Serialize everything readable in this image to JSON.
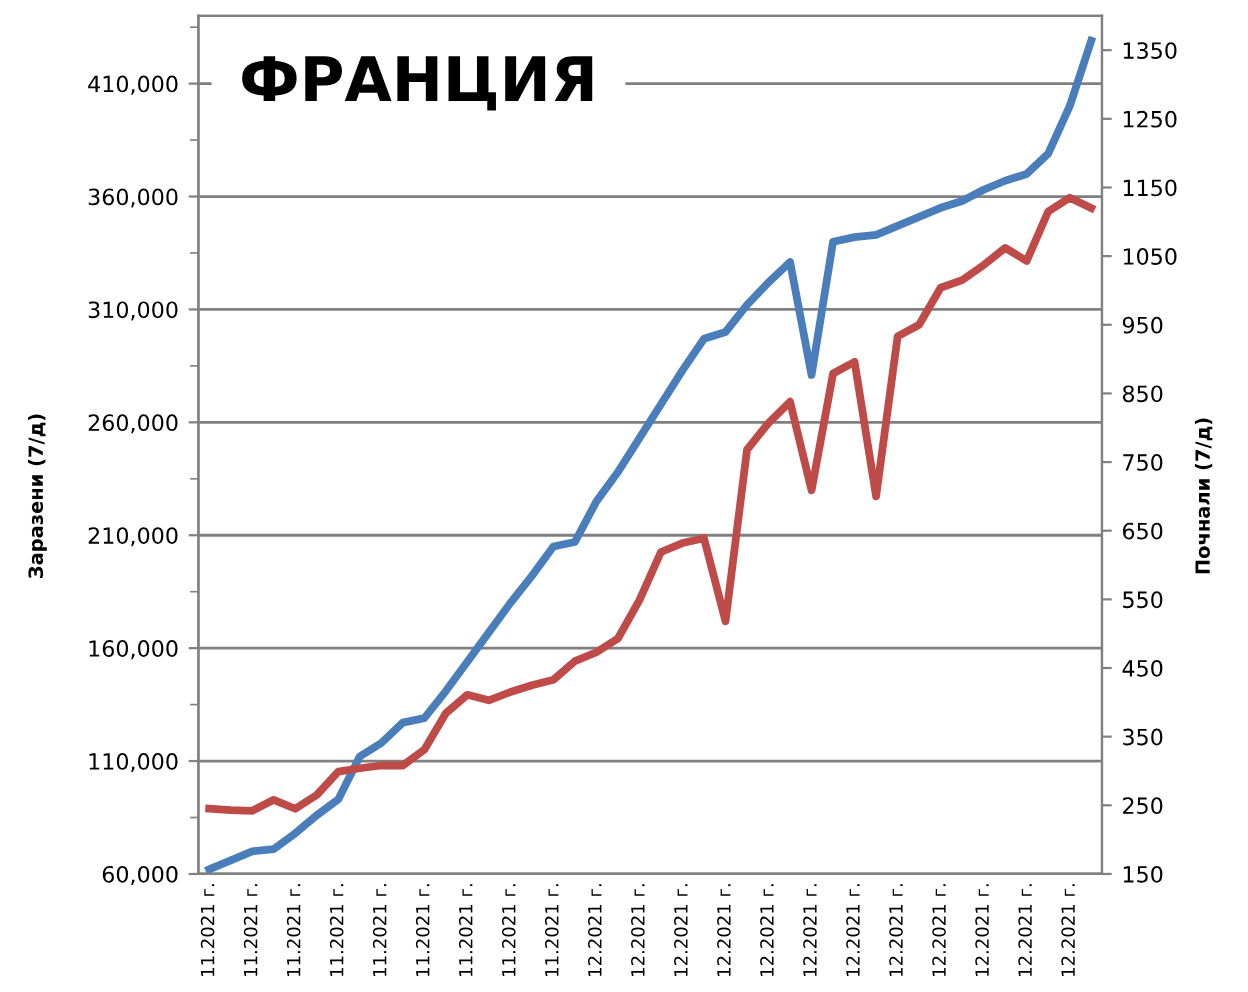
{
  "chart_data": {
    "type": "line",
    "title": "ФРАНЦИЯ",
    "ylabel": "Заразени (7/д)",
    "y2label": "Почнали (7/д)",
    "categories": [
      "11.2021 г.",
      null,
      "11.2021 г.",
      null,
      "11.2021 г.",
      null,
      "11.2021 г.",
      null,
      "11.2021 г.",
      null,
      "11.2021 г.",
      null,
      "11.2021 г.",
      null,
      "11.2021 г.",
      null,
      "11.2021 г.",
      null,
      "12.2021 г.",
      null,
      "12.2021 г.",
      null,
      "12.2021 г.",
      null,
      "12.2021 г.",
      null,
      "12.2021 г.",
      null,
      "12.2021 г.",
      null,
      "12.2021 г.",
      null,
      "12.2021 г.",
      null,
      "12.2021 г.",
      null,
      "12.2021 г.",
      null,
      "12.2021 г.",
      null,
      "12.2021 г.",
      null
    ],
    "series": [
      {
        "color": "#4a7ebb",
        "values": [
          62000,
          66000,
          70000,
          71000,
          78000,
          86000,
          93000,
          112000,
          118000,
          127000,
          129000,
          141000,
          154000,
          167000,
          180000,
          192000,
          205000,
          207000,
          225000,
          238000,
          253000,
          268000,
          283000,
          297000,
          300000,
          312000,
          322000,
          331000,
          281000,
          340000,
          342000,
          343000,
          347000,
          351000,
          355000,
          358000,
          363000,
          367000,
          370000,
          379000,
          400000,
          429000
        ]
      },
      {
        "color": "#be4b48",
        "axis": "y2",
        "values": [
          245,
          243,
          242,
          258,
          245,
          265,
          299,
          304,
          308,
          308,
          331,
          384,
          411,
          403,
          415,
          425,
          433,
          460,
          473,
          493,
          549,
          619,
          632,
          639,
          518,
          768,
          807,
          838,
          709,
          879,
          896,
          700,
          933,
          950,
          1004,
          1015,
          1037,
          1062,
          1043,
          1115,
          1135,
          1120
        ]
      }
    ],
    "ylim": [
      60000,
      440000
    ],
    "yticks": [
      {
        "value": 60000,
        "label": "60,000"
      },
      {
        "value": 85000,
        "label": null
      },
      {
        "value": 110000,
        "label": "110,000"
      },
      {
        "value": 135000,
        "label": null
      },
      {
        "value": 160000,
        "label": "160,000"
      },
      {
        "value": 185000,
        "label": null
      },
      {
        "value": 210000,
        "label": "210,000"
      },
      {
        "value": 235000,
        "label": null
      },
      {
        "value": 260000,
        "label": "260,000"
      },
      {
        "value": 285000,
        "label": null
      },
      {
        "value": 310000,
        "label": "310,000"
      },
      {
        "value": 335000,
        "label": null
      },
      {
        "value": 360000,
        "label": "360,000"
      },
      {
        "value": 385000,
        "label": null
      },
      {
        "value": 410000,
        "label": "410,000"
      },
      {
        "value": 435000,
        "label": null
      }
    ],
    "y2lim": [
      150,
      1400
    ],
    "y2ticks": [
      150,
      250,
      350,
      450,
      550,
      650,
      750,
      850,
      950,
      1050,
      1150,
      1250,
      1350
    ],
    "grid": true
  }
}
